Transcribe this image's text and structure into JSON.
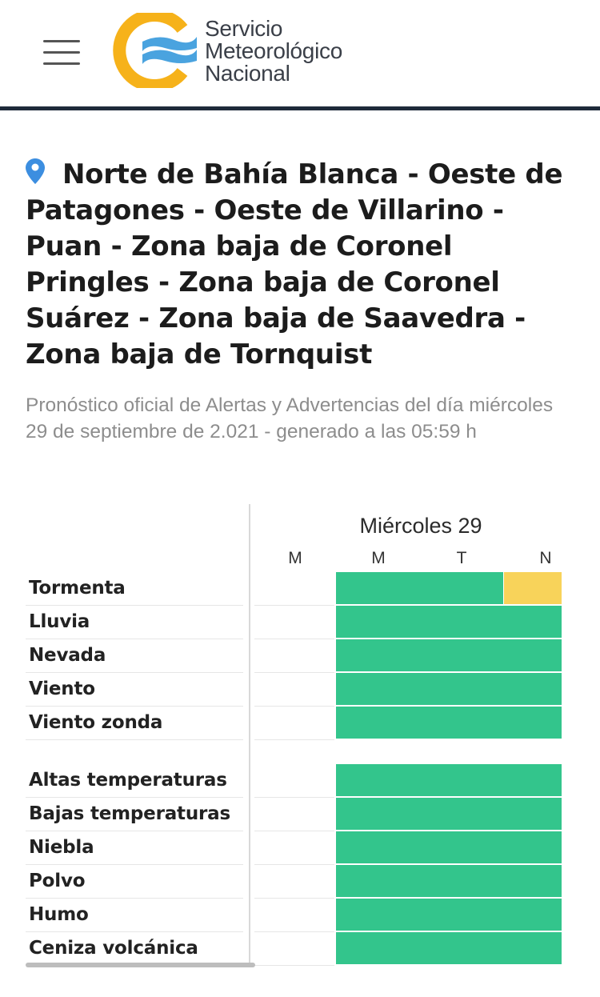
{
  "header": {
    "logo_lines": [
      "Servicio",
      "Meteorológico",
      "Nacional"
    ]
  },
  "location": {
    "title": "Norte de Bahía Blanca - Oeste de Patagones - Oeste de Villarino - Puan - Zona baja de Coronel Pringles - Zona baja de Coronel Suárez - Zona baja de Saavedra - Zona baja de Tornquist"
  },
  "subtitle": "Pronóstico oficial de Alertas y Advertencias del día miércoles 29 de septiembre de 2.021 - generado a las 05:59 h",
  "table": {
    "day": "Miércoles 29",
    "periods": [
      "M",
      "M",
      "T",
      "N"
    ],
    "group1": [
      "Tormenta",
      "Lluvia",
      "Nevada",
      "Viento",
      "Viento zonda"
    ],
    "group2": [
      "Altas temperaturas",
      "Bajas temperaturas",
      "Niebla",
      "Polvo",
      "Humo",
      "Ceniza volcánica"
    ]
  },
  "colors": {
    "green": "#33c58c",
    "yellow": "#f8d35a"
  }
}
